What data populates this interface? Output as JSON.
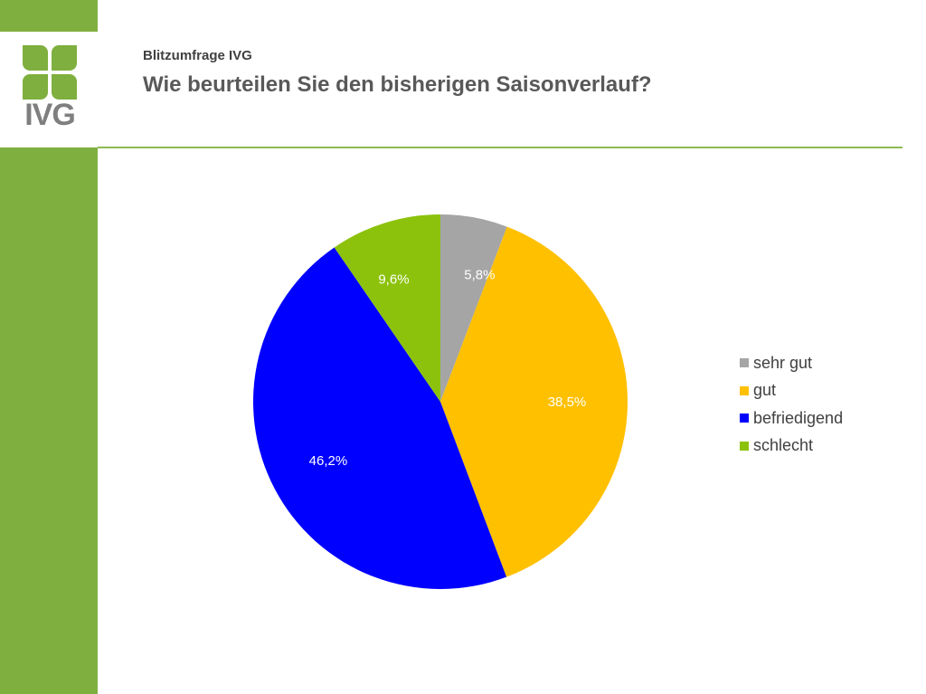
{
  "header": {
    "subtitle": "Blitzumfrage IVG",
    "title": "Wie beurteilen Sie den bisherigen Saisonverlauf?"
  },
  "logo": {
    "text": "IVG",
    "color": "#7faf3e"
  },
  "colors": {
    "brand_green": "#7faf3e",
    "line_green": "#8cba52"
  },
  "chart_data": {
    "type": "pie",
    "categories": [
      "sehr gut",
      "gut",
      "befriedigend",
      "schlecht"
    ],
    "values": [
      5.8,
      38.5,
      46.2,
      9.6
    ],
    "labels": [
      "5,8%",
      "38,5%",
      "46,2%",
      "9,6%"
    ],
    "colors": [
      "#a5a5a5",
      "#ffc000",
      "#0000ff",
      "#8cc20c"
    ],
    "legend": "right"
  }
}
